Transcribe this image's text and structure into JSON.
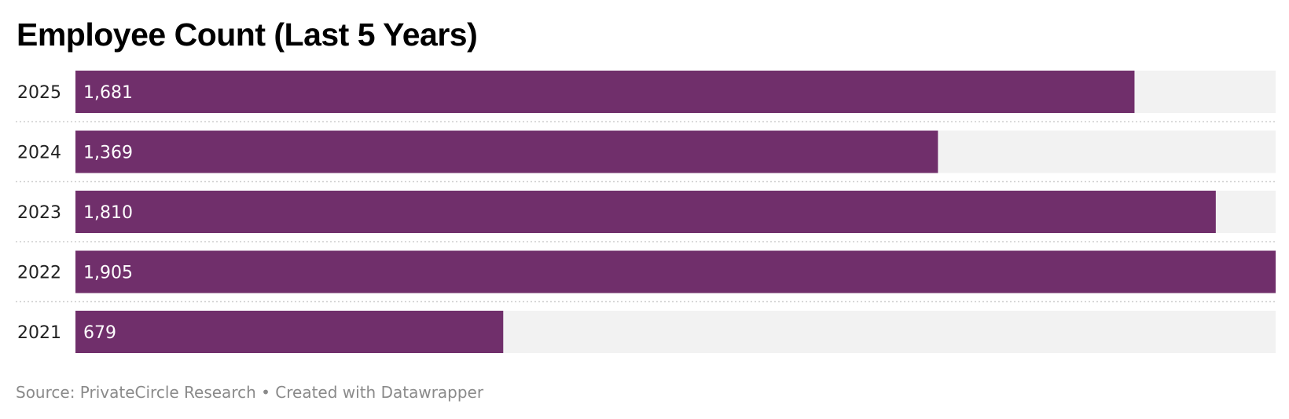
{
  "chart_data": {
    "type": "bar",
    "orientation": "horizontal",
    "title": "Employee Count (Last 5 Years)",
    "categories": [
      "2025",
      "2024",
      "2023",
      "2022",
      "2021"
    ],
    "values": [
      1681,
      1369,
      1810,
      1905,
      679
    ],
    "value_labels": [
      "1,681",
      "1,369",
      "1,810",
      "1,905",
      "679"
    ],
    "xlim": [
      0,
      1905
    ],
    "grid": false,
    "bar_color": "#702f6b",
    "track_color": "#f2f2f2",
    "source": "Source: PrivateCircle Research • Created with Datawrapper"
  }
}
